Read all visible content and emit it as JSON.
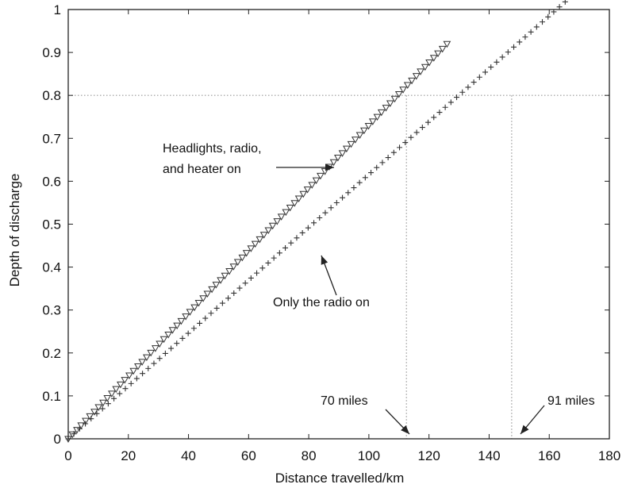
{
  "chart_data": {
    "type": "scatter",
    "xlabel": "Distance travelled/km",
    "ylabel": "Depth of discharge",
    "xlim": [
      0,
      180
    ],
    "ylim": [
      0,
      1
    ],
    "xticks": [
      0,
      20,
      40,
      60,
      80,
      100,
      120,
      140,
      160,
      180
    ],
    "yticks": [
      0,
      0.1,
      0.2,
      0.3,
      0.4,
      0.5,
      0.6,
      0.7,
      0.8,
      0.9,
      1
    ],
    "x_tick_labels": [
      "0",
      "20",
      "40",
      "60",
      "80",
      "100",
      "120",
      "140",
      "160",
      "180"
    ],
    "y_tick_labels": [
      "0",
      "0.1",
      "0.2",
      "0.3",
      "0.4",
      "0.5",
      "0.6",
      "0.7",
      "0.8",
      "0.9",
      "1"
    ],
    "grid": false,
    "reference_lines": {
      "horizontal_y": 0.8,
      "vertical_x": [
        112.5,
        147.5
      ]
    },
    "series": [
      {
        "marker": "triangle-down",
        "x": [
          0,
          1.4,
          2.9,
          4.3,
          5.8,
          7.2,
          8.7,
          10.1,
          11.6,
          13.0,
          14.5,
          15.9,
          17.4,
          18.8,
          20.3,
          21.7,
          23.2,
          24.6,
          26.1,
          27.5,
          29.0,
          30.4,
          31.8,
          33.3,
          34.7,
          36.2,
          37.6,
          39.1,
          40.5,
          42.0,
          43.4,
          44.9,
          46.3,
          47.8,
          49.2,
          50.7,
          52.1,
          53.6,
          55.0,
          56.4,
          57.9,
          59.3,
          60.8,
          62.2,
          63.7,
          65.1,
          66.6,
          68.0,
          69.5,
          70.9,
          72.4,
          73.8,
          75.3,
          76.7,
          78.2,
          79.6,
          81.1,
          82.5,
          83.9,
          85.4,
          86.8,
          88.3,
          89.7,
          91.2,
          92.6,
          94.1,
          95.5,
          97.0,
          98.4,
          99.9,
          101.3,
          102.8,
          104.2,
          105.7,
          107.1,
          108.6,
          110.0,
          111.4,
          112.9,
          114.3,
          115.8,
          117.2,
          118.7,
          120.1,
          121.6,
          123.0,
          124.5,
          126.0
        ],
        "y": [
          0,
          0.0106,
          0.0211,
          0.0317,
          0.0423,
          0.0528,
          0.0634,
          0.074,
          0.0845,
          0.0951,
          0.1057,
          0.1162,
          0.1268,
          0.1374,
          0.1479,
          0.1585,
          0.1691,
          0.1796,
          0.1902,
          0.2008,
          0.2113,
          0.2219,
          0.2325,
          0.2431,
          0.2536,
          0.2642,
          0.2748,
          0.2853,
          0.2959,
          0.3065,
          0.317,
          0.3276,
          0.3382,
          0.3487,
          0.3593,
          0.3699,
          0.3804,
          0.391,
          0.4016,
          0.4121,
          0.4227,
          0.4333,
          0.4438,
          0.4544,
          0.465,
          0.4755,
          0.4861,
          0.4967,
          0.5072,
          0.5178,
          0.5284,
          0.5389,
          0.5495,
          0.5601,
          0.5706,
          0.5812,
          0.5918,
          0.6023,
          0.6129,
          0.6235,
          0.634,
          0.6446,
          0.6552,
          0.6657,
          0.6763,
          0.6869,
          0.6974,
          0.708,
          0.7186,
          0.7292,
          0.7397,
          0.7503,
          0.7609,
          0.7714,
          0.782,
          0.7926,
          0.8031,
          0.8137,
          0.8243,
          0.8348,
          0.8454,
          0.856,
          0.8665,
          0.8771,
          0.8877,
          0.8982,
          0.9088,
          0.92
        ]
      },
      {
        "marker": "plus",
        "x": [
          0,
          1.9,
          3.8,
          5.7,
          7.6,
          9.5,
          11.4,
          13.3,
          15.2,
          17.1,
          19.0,
          20.9,
          22.8,
          24.7,
          26.6,
          28.5,
          30.4,
          32.3,
          34.2,
          36.1,
          38.0,
          39.9,
          41.8,
          43.7,
          45.6,
          47.5,
          49.4,
          51.3,
          53.2,
          55.1,
          57.0,
          58.9,
          60.8,
          62.7,
          64.6,
          66.5,
          68.4,
          70.3,
          72.2,
          74.1,
          76.0,
          77.9,
          79.8,
          81.7,
          83.6,
          85.5,
          87.4,
          89.3,
          91.2,
          93.1,
          95.0,
          96.9,
          98.8,
          100.7,
          102.6,
          104.5,
          106.4,
          108.3,
          110.2,
          112.1,
          114.0,
          115.9,
          117.8,
          119.7,
          121.6,
          123.5,
          125.4,
          127.3,
          129.2,
          131.1,
          133.0,
          134.9,
          136.8,
          138.7,
          140.6,
          142.5,
          144.4,
          146.3,
          148.2,
          150.1,
          152.0,
          153.9,
          155.8,
          157.7,
          159.6,
          161.5,
          163.4,
          165.3
        ],
        "y": [
          0,
          0.0117,
          0.0234,
          0.0351,
          0.0468,
          0.0585,
          0.0702,
          0.0819,
          0.0936,
          0.1053,
          0.117,
          0.1287,
          0.1404,
          0.1521,
          0.1638,
          0.1755,
          0.1872,
          0.1989,
          0.2106,
          0.2223,
          0.234,
          0.2457,
          0.2574,
          0.2691,
          0.2808,
          0.2925,
          0.3042,
          0.3159,
          0.3276,
          0.3393,
          0.351,
          0.3627,
          0.3744,
          0.3861,
          0.3978,
          0.4095,
          0.4212,
          0.4329,
          0.4446,
          0.4563,
          0.468,
          0.4797,
          0.4914,
          0.5031,
          0.5148,
          0.5265,
          0.5382,
          0.5499,
          0.5616,
          0.5733,
          0.585,
          0.5967,
          0.6084,
          0.6201,
          0.6318,
          0.6435,
          0.6552,
          0.6669,
          0.6786,
          0.6903,
          0.702,
          0.7137,
          0.7254,
          0.7371,
          0.7488,
          0.7605,
          0.7722,
          0.7839,
          0.7956,
          0.8073,
          0.819,
          0.8307,
          0.8424,
          0.8541,
          0.8658,
          0.8775,
          0.8892,
          0.9009,
          0.9126,
          0.9243,
          0.936,
          0.9477,
          0.9594,
          0.9711,
          0.9828,
          0.9945,
          1.0062,
          1.0179
        ]
      }
    ],
    "annotations": [
      {
        "id": "headlights",
        "lines": [
          "Headlights, radio,",
          "and heater on"
        ],
        "points_to_series": 0
      },
      {
        "id": "radio",
        "lines": [
          "Only the radio on"
        ],
        "points_to_series": 1
      },
      {
        "id": "miles70",
        "lines": [
          "70 miles"
        ],
        "points_to_x": 112.5
      },
      {
        "id": "miles91",
        "lines": [
          "91 miles"
        ],
        "points_to_x": 147.5
      }
    ]
  }
}
